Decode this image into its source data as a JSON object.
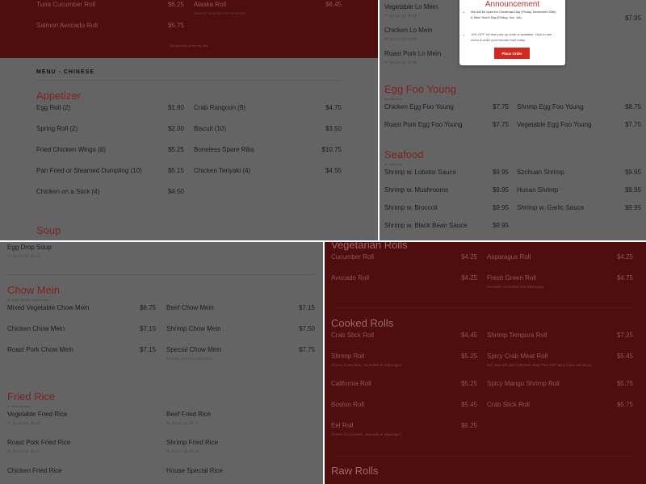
{
  "colors": {
    "panel_gray": "#646464",
    "brand_red": "#4f0e0e",
    "heading_red": "#7f2222",
    "button_red": "#d2281f"
  },
  "top_left": {
    "sushi_items": {
      "left": [
        {
          "name": "Tuna Cucumber Roll",
          "price": "$6.25"
        },
        {
          "name": "Salmon Avocado Roll",
          "price": "$5.75"
        }
      ],
      "right": [
        {
          "name": "Alaska Roll",
          "price": "$6.45",
          "desc": "Salmon, avocado and cucumber"
        }
      ]
    },
    "note": "*Holiday buffet prices may vary",
    "menu_label": "MENU - CHINESE",
    "appetizer": {
      "title": "Appetizer",
      "left": [
        {
          "name": "Egg Roll (2)",
          "price": "$1.80"
        },
        {
          "name": "Spring Roll (2)",
          "price": "$2.00"
        },
        {
          "name": "Fried Chicken Wings (8)",
          "price": "$5.25"
        },
        {
          "name": "Pan Fried or Steamed Dumpling (10)",
          "price": "$5.15"
        },
        {
          "name": "Chicken on a Stick (4)",
          "price": "$4.50"
        }
      ],
      "right": [
        {
          "name": "Crab Rangoon (8)",
          "price": "$4.75"
        },
        {
          "name": "Biscuit (10)",
          "price": "$3.50"
        },
        {
          "name": "Boneless Spare Ribs",
          "price": "$10.75"
        },
        {
          "name": "Chicken Teriyaki (4)",
          "price": "$4.55"
        }
      ]
    },
    "soup": {
      "title": "Soup",
      "left": [],
      "right": []
    }
  },
  "top_right": {
    "lo_mein": {
      "left": [
        {
          "name": "Vegetable Lo Mein",
          "desc": "Pt. $4.15 / Qt. $7.35"
        },
        {
          "name": "Chicken Lo Mein",
          "desc": "Pt. $4.55 / Qt. $7.35"
        },
        {
          "name": "Roast Pork Lo Mein",
          "desc": "Pt. $4.55 / Qt. $7.35"
        }
      ],
      "right": [
        {
          "name": "",
          "price": ""
        },
        {
          "name": "",
          "price": ""
        },
        {
          "name": "",
          "price": "$7.95"
        }
      ]
    },
    "egg_foo_young": {
      "title": "Egg Foo Young",
      "subtitle": "w. white rice",
      "left": [
        {
          "name": "Chicken Egg Foo Young",
          "price": "$7.75"
        },
        {
          "name": "Roast Pork Egg Foo Young",
          "price": "$7.75"
        }
      ],
      "right": [
        {
          "name": "Shrimp Egg Foo Young",
          "price": "$8.75"
        },
        {
          "name": "Vegetable Egg Foo Young",
          "price": "$7.75"
        }
      ]
    },
    "seafood": {
      "title": "Seafood",
      "subtitle": "w. white rice",
      "left": [
        {
          "name": "Shrimp w. Lobster Sauce",
          "price": "$9.95"
        },
        {
          "name": "Shrimp w. Mushrooms",
          "price": "$9.95"
        },
        {
          "name": "Shrimp w. Broccoli",
          "price": "$9.95"
        },
        {
          "name": "Shrimp w. Black Bean Sauce",
          "price": "$9.95"
        }
      ],
      "right": [
        {
          "name": "Szchuan Shrimp",
          "price": "$9.95"
        },
        {
          "name": "Hunan Shrimp",
          "price": "$9.95"
        },
        {
          "name": "Shrimp w. Garlic Sauce",
          "price": "$9.95"
        }
      ]
    },
    "announcement": {
      "title": "Announcement",
      "bullet_1": "We will be open for Christmas Day (Friday, December 25th) & New Year's Day (Friday, Jan. 1st)",
      "bullet_2": "10% OFF 1st time pick up order is available. Click to see menu & order your favorite food today.",
      "button": "Place Order"
    }
  },
  "bottom_left": {
    "soup_items": {
      "left": [
        {
          "name": "Egg Drop Soup",
          "desc": "Pt. $1.85 / Qt. $3.25"
        }
      ],
      "right": []
    },
    "chow_mein": {
      "title": "Chow Mein",
      "subtitle": "w. white rice and fried noodles",
      "left": [
        {
          "name": "Mixed Vegetable Chow Mein",
          "price": "$6.75"
        },
        {
          "name": "Chicken Chow Mein",
          "price": "$7.15"
        },
        {
          "name": "Roast Pork Chow Mein",
          "price": "$7.15"
        }
      ],
      "right": [
        {
          "name": "Beef Chow Mein",
          "price": "$7.15"
        },
        {
          "name": "Shrimp Chow Mein",
          "price": "$7.50"
        },
        {
          "name": "Special Chow Mein",
          "price": "$7.75",
          "desc": "(Shrimp, chicken, roast pork)"
        }
      ]
    },
    "fried_rice": {
      "title": "Fried Rice",
      "subtitle": "w. fried noodles",
      "left": [
        {
          "name": "Vegetable Fried Rice",
          "desc": "Pt. $3.55 / Qt. $5.50"
        },
        {
          "name": "Roast Pork Fried Rice",
          "desc": "Pt. $4.25 / Qt. $7.25"
        },
        {
          "name": "Chicken Fried Rice"
        }
      ],
      "right": [
        {
          "name": "Beef Fried Rice",
          "desc": "Pt. $4.75 / Qt. $7.75"
        },
        {
          "name": "Shrimp Fried Rice",
          "desc": "Pt. $4.75 / Qt. $7.75"
        },
        {
          "name": "House Special Rice"
        }
      ]
    }
  },
  "bottom_right": {
    "vegetarian_rolls": {
      "title": "Vegetarian Rolls",
      "left": [
        {
          "name": "Cucumber Roll",
          "price": "$4.25"
        },
        {
          "name": "Avocado Roll",
          "price": "$4.25"
        }
      ],
      "right": [
        {
          "name": "Asparagus Roll",
          "price": "$4.25"
        },
        {
          "name": "Fresh Green Roll",
          "price": "$4.75",
          "desc": "Avocado, cucumber and asparagus"
        }
      ]
    },
    "cooked_rolls": {
      "title": "Cooked Rolls",
      "left": [
        {
          "name": "Crab Stick Roll",
          "price": "$4.45"
        },
        {
          "name": "Shrimp Roll",
          "price": "$5.25",
          "desc": "Choice of avocado, cucumber or asparagus"
        },
        {
          "name": "California Roll",
          "price": "$5.25"
        },
        {
          "name": "Boston Roll",
          "price": "$5.45"
        },
        {
          "name": "Eel Roll",
          "price": "$6.25",
          "desc": "Choice of cucumber, avocado or asparagus"
        }
      ],
      "right": [
        {
          "name": "Shrimp Tempura Roll",
          "price": "$7.25"
        },
        {
          "name": "Spicy Crab Meat Roll",
          "price": "$5.45",
          "desc": "Eel, avocado and crabmeat deep fried with spicy mayo eel sauce"
        },
        {
          "name": "Spicy Mango Shrimp Roll",
          "price": "$5.75"
        },
        {
          "name": "Crab Stick Roll",
          "price": "$5.75"
        }
      ]
    },
    "raw_rolls": {
      "title": "Raw Rolls",
      "left": [],
      "right": []
    }
  }
}
